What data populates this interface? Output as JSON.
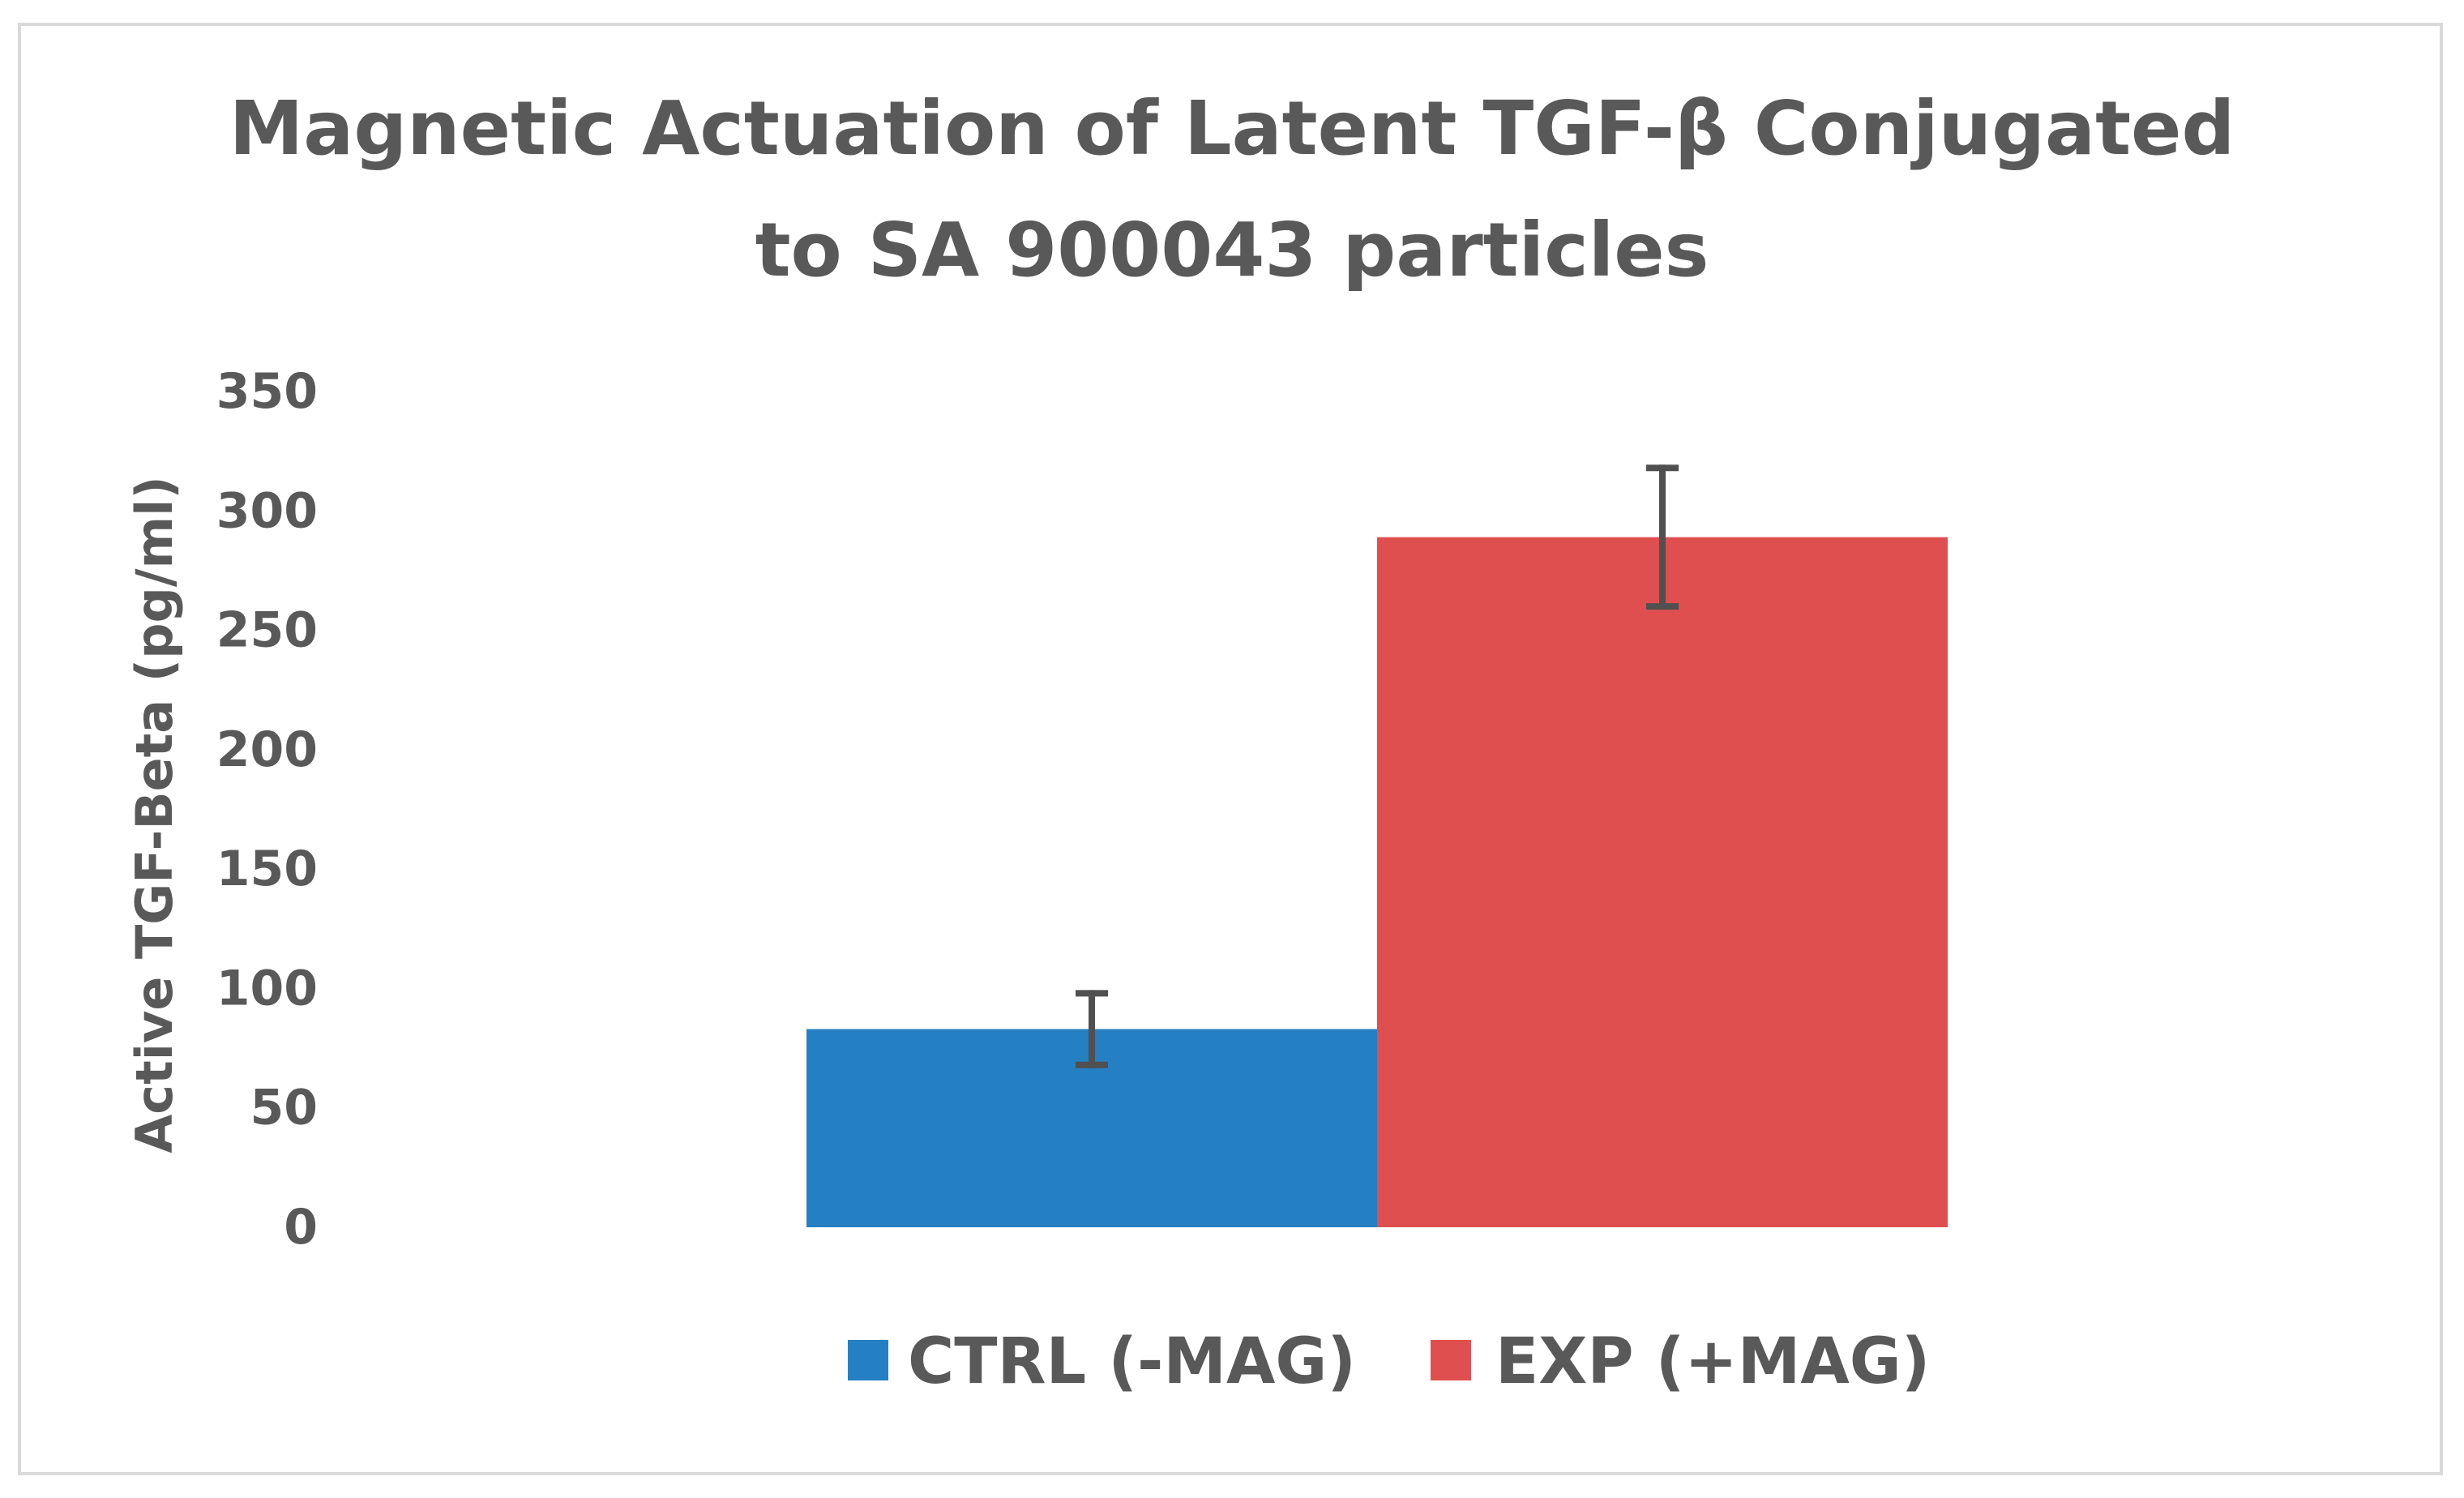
{
  "chart_data": {
    "type": "bar",
    "title_lines": [
      "Magnetic Actuation of Latent TGF-β Conjugated",
      "to SA 900043 particles"
    ],
    "xlabel": "",
    "ylabel": "Active TGF-Beta (pg/ml)",
    "ylim": [
      0,
      350
    ],
    "yticks": [
      "0",
      "50",
      "100",
      "150",
      "200",
      "250",
      "300",
      "350"
    ],
    "grid": false,
    "legend_position": "bottom",
    "categories": [
      ""
    ],
    "series": [
      {
        "name": "CTRL (-MAG)",
        "values": [
          83
        ],
        "error": [
          15
        ],
        "color": "#2580c3"
      },
      {
        "name": "EXP (+MAG)",
        "values": [
          289
        ],
        "error": [
          29
        ],
        "color": "#df4f4f"
      }
    ]
  }
}
